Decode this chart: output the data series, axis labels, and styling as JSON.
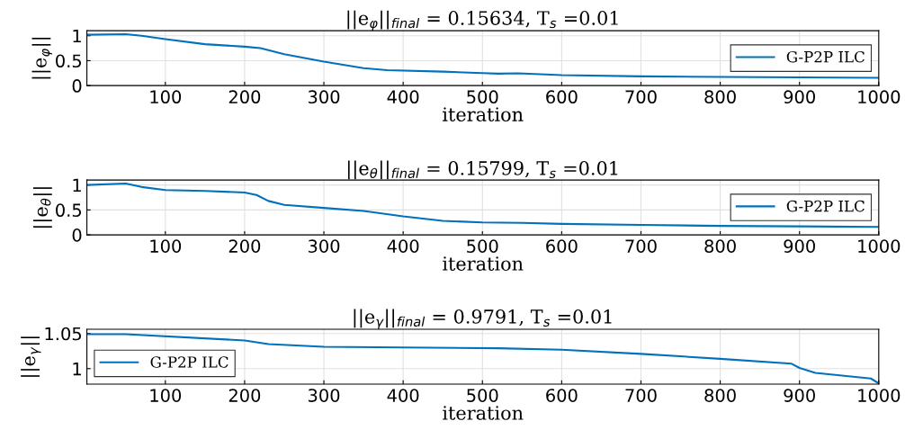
{
  "chart_data": [
    {
      "type": "line",
      "title": "||e$_{φ}$||$_{final}$ = 0.15634, T$_{s}$ =0.01",
      "xlabel": "iteration",
      "ylabel": "||e$_{φ}$||",
      "x": [
        1,
        50,
        70,
        100,
        150,
        200,
        220,
        250,
        300,
        350,
        380,
        450,
        500,
        520,
        545,
        600,
        700,
        800,
        900,
        1000
      ],
      "series": [
        {
          "name": "G-P2P ILC",
          "color": "#0072bd",
          "values": [
            1.02,
            1.03,
            1.0,
            0.93,
            0.83,
            0.78,
            0.75,
            0.63,
            0.48,
            0.35,
            0.31,
            0.28,
            0.25,
            0.24,
            0.245,
            0.21,
            0.185,
            0.175,
            0.165,
            0.156
          ]
        }
      ],
      "xlim": [
        1,
        1000
      ],
      "xticks": [
        100,
        200,
        300,
        400,
        500,
        600,
        700,
        800,
        900,
        1000
      ],
      "ylim": [
        0,
        1.1
      ],
      "yticks": [
        0,
        0.5,
        1
      ],
      "grid": true,
      "legend": "right"
    },
    {
      "type": "line",
      "title": "||e$_{θ}$||$_{final}$ = 0.15799, T$_{s}$ =0.01",
      "xlabel": "iteration",
      "ylabel": "||e$_{θ}$||",
      "x": [
        1,
        50,
        70,
        100,
        150,
        200,
        215,
        230,
        250,
        300,
        350,
        400,
        450,
        500,
        550,
        600,
        700,
        800,
        900,
        1000
      ],
      "series": [
        {
          "name": "G-P2P ILC",
          "color": "#0072bd",
          "values": [
            1.0,
            1.03,
            0.96,
            0.9,
            0.88,
            0.85,
            0.8,
            0.68,
            0.6,
            0.54,
            0.48,
            0.37,
            0.28,
            0.25,
            0.24,
            0.22,
            0.2,
            0.18,
            0.17,
            0.158
          ]
        }
      ],
      "xlim": [
        1,
        1000
      ],
      "xticks": [
        100,
        200,
        300,
        400,
        500,
        600,
        700,
        800,
        900,
        1000
      ],
      "ylim": [
        0,
        1.1
      ],
      "yticks": [
        0,
        0.5,
        1
      ],
      "grid": true,
      "legend": "right"
    },
    {
      "type": "line",
      "title": "||e$_{γ}$||$_{final}$ = 0.9791, T$_{s}$ =0.01",
      "xlabel": "iteration",
      "ylabel": "||e$_{γ}$||",
      "x": [
        1,
        50,
        200,
        230,
        300,
        400,
        520,
        600,
        700,
        800,
        890,
        900,
        920,
        990,
        1000
      ],
      "series": [
        {
          "name": "G-P2P ILC",
          "color": "#0072bd",
          "values": [
            1.049,
            1.049,
            1.04,
            1.035,
            1.031,
            1.03,
            1.029,
            1.027,
            1.021,
            1.014,
            1.007,
            1.001,
            0.994,
            0.986,
            0.979
          ]
        }
      ],
      "xlim": [
        1,
        1000
      ],
      "xticks": [
        100,
        200,
        300,
        400,
        500,
        600,
        700,
        800,
        900,
        1000
      ],
      "ylim": [
        0.978,
        1.056
      ],
      "yticks": [
        1,
        1.05
      ],
      "grid": true,
      "legend": "bottom left"
    }
  ]
}
